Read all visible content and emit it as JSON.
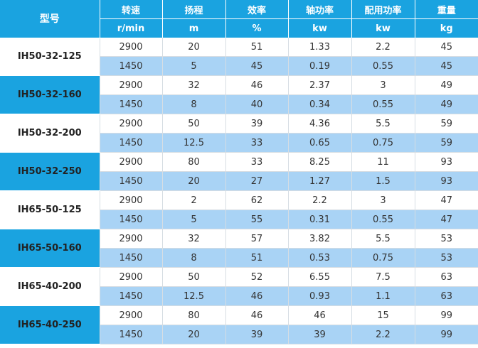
{
  "header": {
    "model": "型号",
    "columns": [
      {
        "name": "转速",
        "unit": "r/min"
      },
      {
        "name": "扬程",
        "unit": "m"
      },
      {
        "name": "效率",
        "unit": "%"
      },
      {
        "name": "轴功率",
        "unit": "kw"
      },
      {
        "name": "配用功率",
        "unit": "kw"
      },
      {
        "name": "重量",
        "unit": "kg"
      }
    ]
  },
  "models": [
    {
      "name": "IH50-32-125",
      "rows": [
        [
          "2900",
          "20",
          "51",
          "1.33",
          "2.2",
          "45"
        ],
        [
          "1450",
          "5",
          "45",
          "0.19",
          "0.55",
          "45"
        ]
      ]
    },
    {
      "name": "IH50-32-160",
      "rows": [
        [
          "2900",
          "32",
          "46",
          "2.37",
          "3",
          "49"
        ],
        [
          "1450",
          "8",
          "40",
          "0.34",
          "0.55",
          "49"
        ]
      ]
    },
    {
      "name": "IH50-32-200",
      "rows": [
        [
          "2900",
          "50",
          "39",
          "4.36",
          "5.5",
          "59"
        ],
        [
          "1450",
          "12.5",
          "33",
          "0.65",
          "0.75",
          "59"
        ]
      ]
    },
    {
      "name": "IH50-32-250",
      "rows": [
        [
          "2900",
          "80",
          "33",
          "8.25",
          "11",
          "93"
        ],
        [
          "1450",
          "20",
          "27",
          "1.27",
          "1.5",
          "93"
        ]
      ]
    },
    {
      "name": "IH65-50-125",
      "rows": [
        [
          "2900",
          "2",
          "62",
          "2.2",
          "3",
          "47"
        ],
        [
          "1450",
          "5",
          "55",
          "0.31",
          "0.55",
          "47"
        ]
      ]
    },
    {
      "name": "IH65-50-160",
      "rows": [
        [
          "2900",
          "32",
          "57",
          "3.82",
          "5.5",
          "53"
        ],
        [
          "1450",
          "8",
          "51",
          "0.53",
          "0.75",
          "53"
        ]
      ]
    },
    {
      "name": "IH65-40-200",
      "rows": [
        [
          "2900",
          "50",
          "52",
          "6.55",
          "7.5",
          "63"
        ],
        [
          "1450",
          "12.5",
          "46",
          "0.93",
          "1.1",
          "63"
        ]
      ]
    },
    {
      "name": "IH65-40-250",
      "rows": [
        [
          "2900",
          "80",
          "46",
          "46",
          "15",
          "99"
        ],
        [
          "1450",
          "20",
          "39",
          "39",
          "2.2",
          "99"
        ]
      ]
    }
  ]
}
